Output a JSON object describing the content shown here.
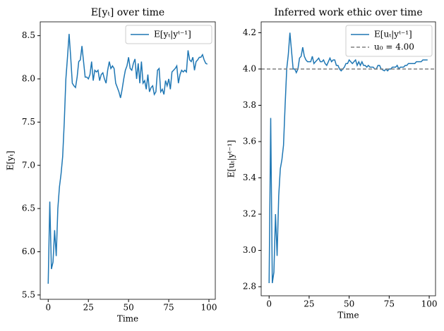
{
  "chart_data": [
    {
      "type": "line",
      "title": "E[yₜ] over time",
      "xlabel": "Time",
      "ylabel": "E[yₜ]",
      "x": [
        0,
        1,
        2,
        3,
        4,
        5,
        6,
        7,
        8,
        9,
        10,
        11,
        12,
        13,
        14,
        15,
        16,
        17,
        18,
        19,
        20,
        21,
        22,
        23,
        24,
        25,
        26,
        27,
        28,
        29,
        30,
        31,
        32,
        33,
        34,
        35,
        36,
        37,
        38,
        39,
        40,
        41,
        42,
        43,
        44,
        45,
        46,
        47,
        48,
        49,
        50,
        51,
        52,
        53,
        54,
        55,
        56,
        57,
        58,
        59,
        60,
        61,
        62,
        63,
        64,
        65,
        66,
        67,
        68,
        69,
        70,
        71,
        72,
        73,
        74,
        75,
        76,
        77,
        78,
        79,
        80,
        81,
        82,
        83,
        84,
        85,
        86,
        87,
        88,
        89,
        90,
        91,
        92,
        93,
        94,
        95,
        96,
        97,
        98,
        99
      ],
      "series": [
        {
          "name": "E[yₜ|yᵗ⁻¹]",
          "color": "#1f77b4",
          "values": [
            5.63,
            6.58,
            5.8,
            5.88,
            6.25,
            5.95,
            6.5,
            6.75,
            6.9,
            7.1,
            7.5,
            8.0,
            8.25,
            8.52,
            8.25,
            7.95,
            7.92,
            7.9,
            8.02,
            8.2,
            8.22,
            8.38,
            8.2,
            8.02,
            8.02,
            8.0,
            8.05,
            8.2,
            7.98,
            8.1,
            8.08,
            8.1,
            7.98,
            8.05,
            8.07,
            8.0,
            7.95,
            8.1,
            8.2,
            8.12,
            8.15,
            8.12,
            7.95,
            7.9,
            7.85,
            7.78,
            7.88,
            8.0,
            8.1,
            8.15,
            8.25,
            8.12,
            8.1,
            8.18,
            8.23,
            8.0,
            8.18,
            7.95,
            8.2,
            7.95,
            7.98,
            7.88,
            8.05,
            7.85,
            7.9,
            7.92,
            7.82,
            7.85,
            8.1,
            8.12,
            7.85,
            7.88,
            7.82,
            7.98,
            7.92,
            8.0,
            7.88,
            8.08,
            8.1,
            8.12,
            8.15,
            7.95,
            8.05,
            8.1,
            8.08,
            8.1,
            8.08,
            8.33,
            8.22,
            8.2,
            8.25,
            8.1,
            8.2,
            8.22,
            8.25,
            8.25,
            8.28,
            8.22,
            8.18,
            8.17
          ]
        }
      ],
      "xlim": [
        -4.95,
        103.95
      ],
      "xticks": [
        0,
        25,
        50,
        75,
        100
      ],
      "ylim": [
        5.45,
        8.66
      ],
      "yticks": [
        5.5,
        {
          "value": 6,
          "label": "6.0"
        },
        6.5,
        {
          "value": 7,
          "label": "7.0"
        },
        7.5,
        {
          "value": 8,
          "label": "8.0"
        },
        8.5
      ],
      "legend": "upper right"
    },
    {
      "type": "line",
      "title": "Inferred work ethic over time",
      "xlabel": "Time",
      "ylabel": "E[uₜ|yᵗ⁻¹]",
      "x": [
        0,
        1,
        2,
        3,
        4,
        5,
        6,
        7,
        8,
        9,
        10,
        11,
        12,
        13,
        14,
        15,
        16,
        17,
        18,
        19,
        20,
        21,
        22,
        23,
        24,
        25,
        26,
        27,
        28,
        29,
        30,
        31,
        32,
        33,
        34,
        35,
        36,
        37,
        38,
        39,
        40,
        41,
        42,
        43,
        44,
        45,
        46,
        47,
        48,
        49,
        50,
        51,
        52,
        53,
        54,
        55,
        56,
        57,
        58,
        59,
        60,
        61,
        62,
        63,
        64,
        65,
        66,
        67,
        68,
        69,
        70,
        71,
        72,
        73,
        74,
        75,
        76,
        77,
        78,
        79,
        80,
        81,
        82,
        83,
        84,
        85,
        86,
        87,
        88,
        89,
        90,
        91,
        92,
        93,
        94,
        95,
        96,
        97,
        98,
        99
      ],
      "series": [
        {
          "name": "E[uₜ|yᵗ⁻¹]",
          "color": "#1f77b4",
          "values": [
            2.82,
            3.73,
            2.82,
            2.88,
            3.2,
            2.97,
            3.3,
            3.45,
            3.5,
            3.58,
            3.8,
            4.0,
            4.08,
            4.2,
            4.1,
            4.0,
            4.0,
            3.98,
            4.0,
            4.06,
            4.07,
            4.12,
            4.07,
            4.05,
            4.04,
            4.04,
            4.04,
            4.07,
            4.03,
            4.04,
            4.05,
            4.06,
            4.04,
            4.04,
            4.05,
            4.03,
            4.02,
            4.04,
            4.06,
            4.04,
            4.05,
            4.05,
            4.02,
            4.02,
            4.0,
            3.99,
            4.0,
            4.01,
            4.03,
            4.03,
            4.05,
            4.04,
            4.03,
            4.04,
            4.05,
            4.02,
            4.04,
            4.02,
            4.04,
            4.02,
            4.02,
            4.01,
            4.02,
            4.01,
            4.01,
            4.01,
            4.0,
            4.0,
            4.02,
            4.02,
            4.0,
            3.995,
            3.99,
            4.0,
            3.99,
            4.0,
            4.0,
            4.01,
            4.01,
            4.01,
            4.02,
            4.0,
            4.01,
            4.01,
            4.01,
            4.02,
            4.02,
            4.03,
            4.03,
            4.03,
            4.03,
            4.03,
            4.04,
            4.04,
            4.04,
            4.04,
            4.05,
            4.05,
            4.05,
            4.05
          ]
        }
      ],
      "hlines": [
        {
          "name": "u₀ = 4.00",
          "value": 4.0,
          "color": "#808080",
          "style": "dashed"
        }
      ],
      "xlim": [
        -4.95,
        103.95
      ],
      "xticks": [
        0,
        25,
        50,
        75,
        100
      ],
      "ylim": [
        2.75,
        4.26
      ],
      "yticks": [
        2.8,
        {
          "value": 3,
          "label": "3.0"
        },
        3.2,
        3.4,
        3.6,
        3.8,
        {
          "value": 4,
          "label": "4.0"
        },
        4.2
      ],
      "legend": "upper right"
    }
  ]
}
